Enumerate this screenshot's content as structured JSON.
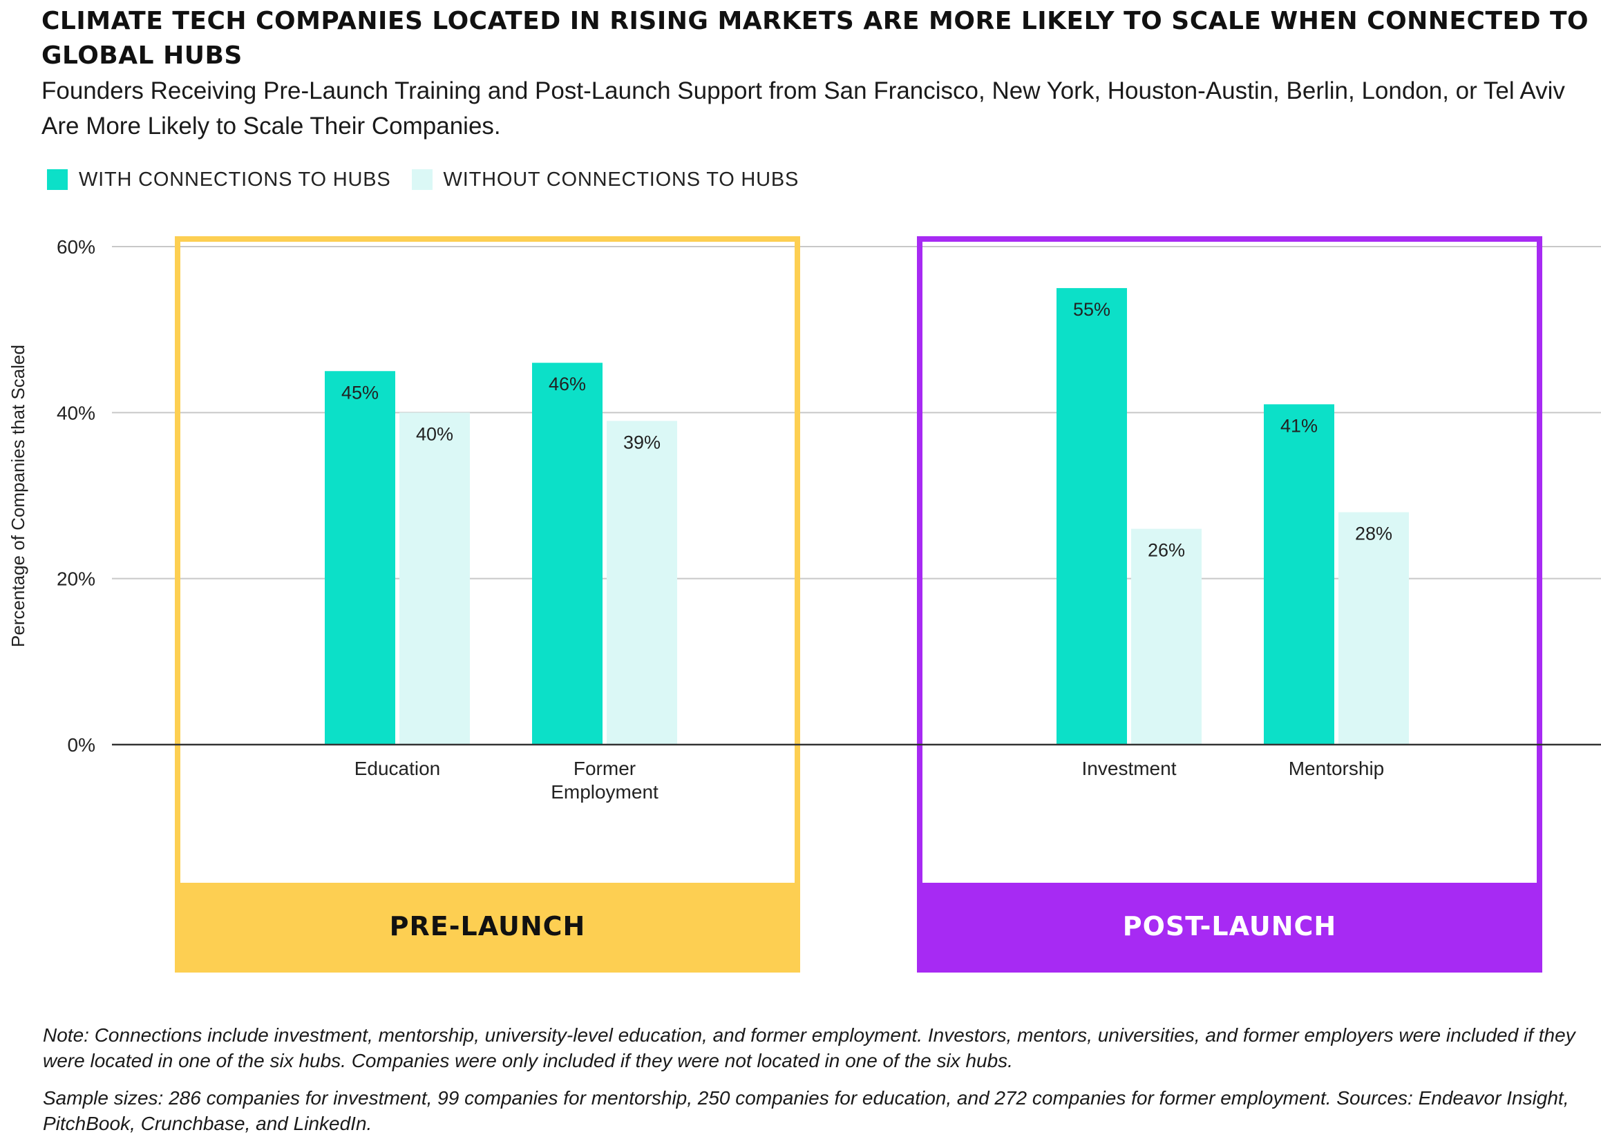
{
  "title": "CLIMATE TECH COMPANIES LOCATED IN RISING MARKETS ARE MORE LIKELY TO SCALE WHEN CONNECTED TO GLOBAL HUBS",
  "subtitle": "Founders Receiving Pre-Launch Training and Post-Launch Support from San Francisco, New York, Houston-Austin, Berlin, London, or Tel Aviv Are More Likely to Scale Their Companies.",
  "colors": {
    "with_hubs": "#0CE0C8",
    "without_hubs": "#DBF8F6",
    "pre_launch": "#FDCF52",
    "post_launch": "#A72AF3",
    "grid": "#c8c8c8",
    "axis": "#333333"
  },
  "legend": {
    "with_label": "WITH CONNECTIONS TO HUBS",
    "without_label": "WITHOUT CONNECTIONS TO HUBS"
  },
  "groups": [
    {
      "label": "PRE-LAUNCH",
      "color_key": "pre_launch",
      "text_color": "#111111",
      "categories": [
        "Education",
        "Former Employment"
      ]
    },
    {
      "label": "POST-LAUNCH",
      "color_key": "post_launch",
      "text_color": "#ffffff",
      "categories": [
        "Investment",
        "Mentorship"
      ]
    }
  ],
  "chart_data": {
    "type": "bar",
    "categories": [
      "Education",
      "Former Employment",
      "Investment",
      "Mentorship"
    ],
    "category_lines": [
      [
        "Education"
      ],
      [
        "Former",
        "Employment"
      ],
      [
        "Investment"
      ],
      [
        "Mentorship"
      ]
    ],
    "series": [
      {
        "name": "WITH CONNECTIONS TO HUBS",
        "values": [
          45,
          46,
          55,
          41
        ],
        "labels": [
          "45%",
          "46%",
          "55%",
          "41%"
        ]
      },
      {
        "name": "WITHOUT CONNECTIONS TO HUBS",
        "values": [
          40,
          39,
          26,
          28
        ],
        "labels": [
          "40%",
          "39%",
          "26%",
          "28%"
        ]
      }
    ],
    "ylabel": "Percentage of Companies that Scaled",
    "ylim": [
      0,
      60
    ],
    "yticks": [
      0,
      20,
      40,
      60
    ],
    "ytick_labels": [
      "0%",
      "20%",
      "40%",
      "60%"
    ],
    "grid": true,
    "legend_position": "top-left"
  },
  "notes": [
    "Note: Connections include investment, mentorship, university-level education, and former employment. Investors, mentors, universities, and former employers were included if they were located in one of the six hubs. Companies were only included if they were not located in one of the six hubs.",
    "Sample sizes: 286 companies for investment, 99 companies for mentorship, 250 companies for education, and 272 companies for former employment. Sources: Endeavor Insight, PitchBook, Crunchbase, and LinkedIn."
  ]
}
